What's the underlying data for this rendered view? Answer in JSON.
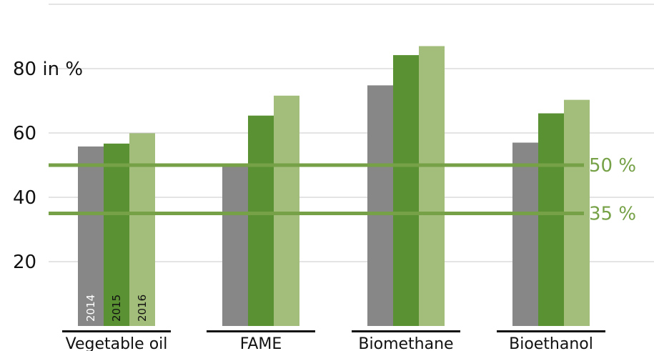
{
  "chart_data": {
    "type": "bar",
    "title": "",
    "xlabel": "",
    "ylabel": "in %",
    "ylim": [
      0,
      100
    ],
    "y_ticks": [
      {
        "value": 20,
        "label": "20"
      },
      {
        "value": 40,
        "label": "40"
      },
      {
        "value": 60,
        "label": "60"
      },
      {
        "value": 80,
        "label": "80 in %"
      }
    ],
    "grid": true,
    "categories": [
      "Vegetable oil",
      "FAME",
      "Biomethane",
      "Bioethanol"
    ],
    "series": [
      {
        "name": "2014",
        "color": "#878787",
        "values": [
          55.8,
          50.0,
          74.8,
          57.0
        ]
      },
      {
        "name": "2015",
        "color": "#5a9132",
        "values": [
          56.7,
          65.4,
          84.2,
          66.1
        ]
      },
      {
        "name": "2016",
        "color": "#a3bd7a",
        "values": [
          59.9,
          71.6,
          87.0,
          70.3
        ]
      }
    ],
    "reference_lines": [
      {
        "value": 50,
        "label": "50 %",
        "color": "#76a147"
      },
      {
        "value": 35,
        "label": "35 %",
        "color": "#76a147"
      }
    ]
  }
}
